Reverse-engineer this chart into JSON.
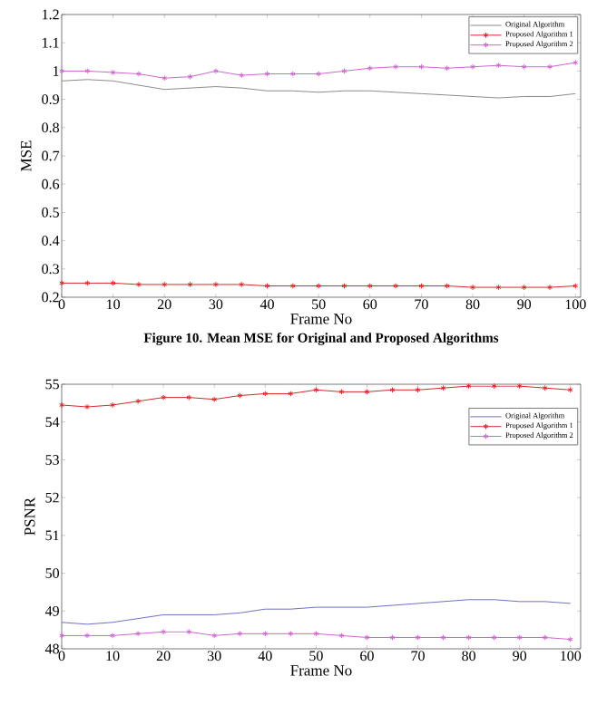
{
  "chart_data": [
    {
      "type": "line",
      "title": "Figure 10. Mean MSE for Original and Proposed Algorithms",
      "xlabel": "Frame No",
      "ylabel": "MSE",
      "x": [
        0,
        5,
        10,
        15,
        20,
        25,
        30,
        35,
        40,
        45,
        50,
        55,
        60,
        65,
        70,
        75,
        80,
        85,
        90,
        95,
        100
      ],
      "xlim": [
        0,
        101
      ],
      "ylim": [
        0.2,
        1.2
      ],
      "xticks": [
        0,
        10,
        20,
        30,
        40,
        50,
        60,
        70,
        80,
        90,
        100
      ],
      "yticks": [
        0.2,
        0.3,
        0.4,
        0.5,
        0.6,
        0.7,
        0.8,
        0.9,
        1,
        1.1,
        1.2
      ],
      "legend": "top right",
      "series": [
        {
          "name": "Original Algorithm",
          "color": "#8c8c8c",
          "marker": "none",
          "values": [
            0.965,
            0.97,
            0.965,
            0.95,
            0.935,
            0.94,
            0.945,
            0.94,
            0.93,
            0.93,
            0.925,
            0.93,
            0.93,
            0.925,
            0.92,
            0.915,
            0.91,
            0.905,
            0.91,
            0.91,
            0.92
          ]
        },
        {
          "name": "Proposed Algorithm 1",
          "color": "#d62728",
          "marker": "cross",
          "values": [
            0.25,
            0.25,
            0.25,
            0.245,
            0.245,
            0.245,
            0.245,
            0.245,
            0.24,
            0.24,
            0.24,
            0.24,
            0.24,
            0.24,
            0.24,
            0.24,
            0.235,
            0.235,
            0.235,
            0.235,
            0.24
          ]
        },
        {
          "name": "Proposed Algorithm 2",
          "color": "#cc66cc",
          "marker": "cross",
          "values": [
            1.0,
            1.0,
            0.995,
            0.99,
            0.975,
            0.98,
            1.0,
            0.985,
            0.99,
            0.99,
            0.99,
            1.0,
            1.01,
            1.015,
            1.015,
            1.01,
            1.015,
            1.02,
            1.015,
            1.015,
            1.03
          ]
        }
      ]
    },
    {
      "type": "line",
      "xlabel": "Frame No",
      "ylabel": "PSNR",
      "x": [
        0,
        5,
        10,
        15,
        20,
        25,
        30,
        35,
        40,
        45,
        50,
        55,
        60,
        65,
        70,
        75,
        80,
        85,
        90,
        95,
        100
      ],
      "xlim": [
        0,
        102
      ],
      "ylim": [
        48,
        55
      ],
      "xticks": [
        0,
        10,
        20,
        30,
        40,
        50,
        60,
        70,
        80,
        90,
        100
      ],
      "yticks": [
        48,
        49,
        50,
        51,
        52,
        53,
        54,
        55
      ],
      "legend": "top right",
      "series": [
        {
          "name": "Original Algorithm",
          "color": "#7070c0",
          "marker": "none",
          "values": [
            48.7,
            48.65,
            48.7,
            48.8,
            48.9,
            48.9,
            48.9,
            48.95,
            49.05,
            49.05,
            49.1,
            49.1,
            49.1,
            49.15,
            49.2,
            49.25,
            49.3,
            49.3,
            49.25,
            49.25,
            49.2
          ]
        },
        {
          "name": "Proposed Algorithm 1",
          "color": "#d62728",
          "marker": "cross",
          "values": [
            54.45,
            54.4,
            54.45,
            54.55,
            54.65,
            54.65,
            54.6,
            54.7,
            54.75,
            54.75,
            54.85,
            54.8,
            54.8,
            54.85,
            54.85,
            54.9,
            54.95,
            54.95,
            54.95,
            54.9,
            54.85
          ]
        },
        {
          "name": "Proposed Algorithm 2",
          "color": "#cc66cc",
          "marker": "cross",
          "values": [
            48.35,
            48.35,
            48.35,
            48.4,
            48.45,
            48.45,
            48.35,
            48.4,
            48.4,
            48.4,
            48.4,
            48.35,
            48.3,
            48.3,
            48.3,
            48.3,
            48.3,
            48.3,
            48.3,
            48.3,
            48.25
          ]
        }
      ]
    }
  ]
}
